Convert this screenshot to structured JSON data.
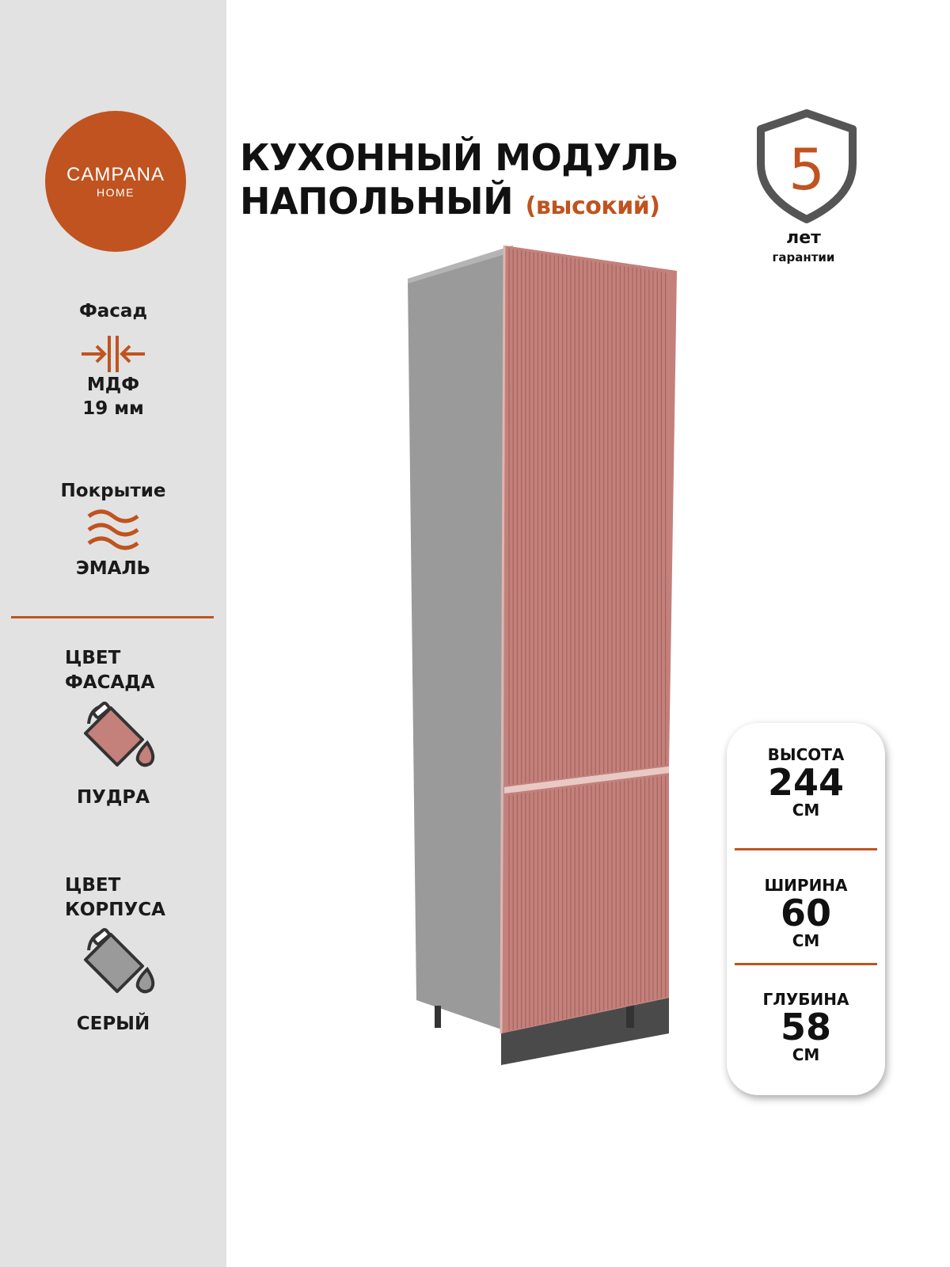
{
  "brand": {
    "name": "CAMPANA",
    "sub": "HOME"
  },
  "title": {
    "line1": "КУХОННЫЙ МОДУЛЬ",
    "line2": "НАПОЛЬНЫЙ",
    "accent": "(высокий)"
  },
  "warranty": {
    "number": "5",
    "label1": "лет",
    "label2": "гарантии"
  },
  "specs": {
    "facade_label": "Фасад",
    "facade_material": "МДФ",
    "facade_thickness": "19 мм",
    "coating_label": "Покрытие",
    "coating_value": "ЭМАЛЬ",
    "facade_color_label1": "ЦВЕТ",
    "facade_color_label2": "ФАСАДА",
    "facade_color_value": "ПУДРА",
    "body_color_label1": "ЦВЕТ",
    "body_color_label2": "КОРПУСА",
    "body_color_value": "СЕРЫЙ"
  },
  "dimensions": [
    {
      "label": "ВЫСОТА",
      "value": "244",
      "unit": "СМ"
    },
    {
      "label": "ШИРИНА",
      "value": "60",
      "unit": "СМ"
    },
    {
      "label": "ГЛУБИНА",
      "value": "58",
      "unit": "СМ"
    }
  ],
  "colors": {
    "accent": "#c0531f",
    "facade": "#c4807a",
    "body": "#9a9a9a",
    "sidebar": "#e2e2e2"
  },
  "icons": [
    "thickness-arrows-icon",
    "waves-icon",
    "paint-bucket-icon",
    "shield-icon"
  ]
}
